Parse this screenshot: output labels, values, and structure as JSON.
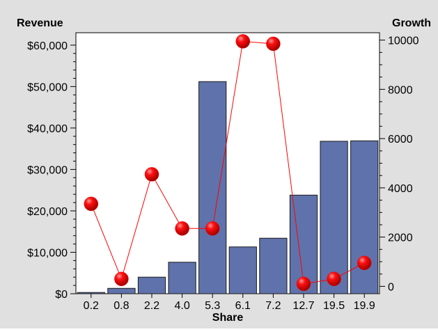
{
  "colors": {
    "panel_background": "#e0e0e0",
    "plot_background": "#ffffff",
    "bar_fill": "#5f72ab",
    "bar_stroke": "#1a1a1a",
    "line_color": "#ff0000",
    "marker_color": "#ff0000"
  },
  "chart_data": {
    "type": "bar",
    "categories": [
      "0.2",
      "0.8",
      "2.2",
      "4.0",
      "5.3",
      "6.1",
      "7.2",
      "12.7",
      "19.5",
      "19.9"
    ],
    "xlabel": "Share",
    "y_left": {
      "label": "Revenue",
      "ylim": [
        0,
        63000
      ],
      "ticks": [
        0,
        10000,
        20000,
        30000,
        40000,
        50000,
        60000
      ],
      "tick_labels": [
        "$0",
        "$10,000",
        "$20,000",
        "$30,000",
        "$40,000",
        "$50,000",
        "$60,000"
      ]
    },
    "y_right": {
      "label": "Growth",
      "ylim": [
        -300,
        10300
      ],
      "ticks": [
        0,
        2000,
        4000,
        6000,
        8000,
        10000
      ],
      "tick_labels": [
        "0",
        "2000",
        "4000",
        "6000",
        "8000",
        "10000"
      ]
    },
    "series": [
      {
        "type": "bar",
        "axis": "left",
        "values": [
          300,
          1300,
          4000,
          7600,
          51200,
          11300,
          13400,
          23800,
          36800,
          36900
        ]
      },
      {
        "type": "line",
        "axis": "right",
        "marker": "sphere",
        "values": [
          3350,
          300,
          4550,
          2350,
          2350,
          9950,
          9850,
          100,
          300,
          950
        ]
      }
    ],
    "grid": false,
    "legend": "none"
  }
}
